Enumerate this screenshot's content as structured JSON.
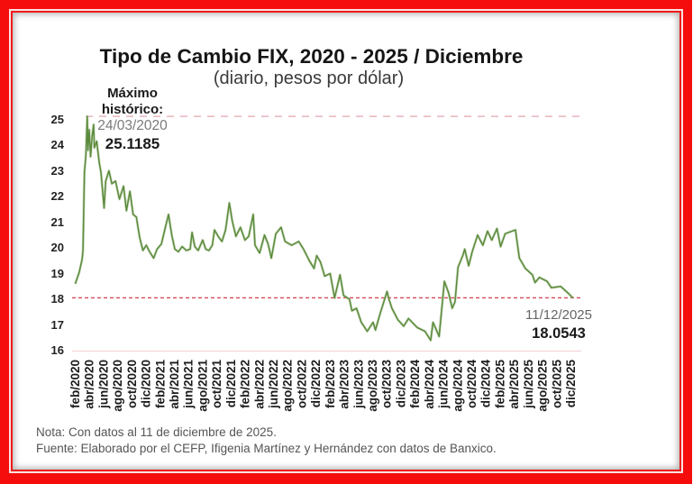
{
  "chart_data": {
    "type": "line",
    "title": "Tipo de Cambio FIX, 2020 - 2025 / Diciembre",
    "subtitle": "(diario, pesos por dólar)",
    "xlabel": "",
    "ylabel": "",
    "ylim": [
      16,
      25
    ],
    "grid": false,
    "legend": "none",
    "yticks": [
      "25",
      "24",
      "23",
      "22",
      "21",
      "20",
      "19",
      "18",
      "17",
      "16"
    ],
    "xticks": [
      "feb/2020",
      "abr/2020",
      "jun/2020",
      "ago/2020",
      "oct/2020",
      "dic/2020",
      "feb/2021",
      "abr/2021",
      "jun/2021",
      "ago/2021",
      "oct/2021",
      "dic/2021",
      "feb/2022",
      "abr/2022",
      "jun/2022",
      "ago/2022",
      "oct/2022",
      "dic/2022",
      "feb/2023",
      "abr/2023",
      "jun/2023",
      "ago/2023",
      "oct/2023",
      "dic/2023",
      "feb/2024",
      "abr/2024",
      "jun/2024",
      "ago/2024",
      "oct/2024",
      "dic/2024",
      "feb/2025",
      "abr/2025",
      "jun/2025",
      "ago/2025",
      "oct/2025",
      "dic/2025"
    ],
    "series": [
      {
        "name": "Tipo de Cambio FIX",
        "color": "#5b8a3c",
        "points": [
          [
            "2020-02-03",
            18.6
          ],
          [
            "2020-02-20",
            19.05
          ],
          [
            "2020-03-02",
            19.55
          ],
          [
            "2020-03-06",
            19.9
          ],
          [
            "2020-03-12",
            22.95
          ],
          [
            "2020-03-18",
            23.6
          ],
          [
            "2020-03-24",
            25.1185
          ],
          [
            "2020-03-27",
            23.8
          ],
          [
            "2020-04-02",
            24.6
          ],
          [
            "2020-04-08",
            23.55
          ],
          [
            "2020-04-14",
            24.3
          ],
          [
            "2020-04-21",
            24.8
          ],
          [
            "2020-04-24",
            23.9
          ],
          [
            "2020-05-04",
            24.15
          ],
          [
            "2020-05-15",
            23.3
          ],
          [
            "2020-05-22",
            22.95
          ],
          [
            "2020-06-05",
            21.55
          ],
          [
            "2020-06-12",
            22.6
          ],
          [
            "2020-06-26",
            23.0
          ],
          [
            "2020-07-08",
            22.5
          ],
          [
            "2020-07-24",
            22.6
          ],
          [
            "2020-08-10",
            21.9
          ],
          [
            "2020-08-28",
            22.4
          ],
          [
            "2020-09-10",
            21.45
          ],
          [
            "2020-09-25",
            22.2
          ],
          [
            "2020-10-08",
            21.3
          ],
          [
            "2020-10-22",
            21.2
          ],
          [
            "2020-11-06",
            20.4
          ],
          [
            "2020-11-20",
            19.9
          ],
          [
            "2020-12-04",
            20.1
          ],
          [
            "2020-12-18",
            19.85
          ],
          [
            "2021-01-05",
            19.6
          ],
          [
            "2021-01-20",
            19.95
          ],
          [
            "2021-02-08",
            20.15
          ],
          [
            "2021-02-25",
            20.8
          ],
          [
            "2021-03-08",
            21.3
          ],
          [
            "2021-03-22",
            20.5
          ],
          [
            "2021-04-05",
            19.95
          ],
          [
            "2021-04-20",
            19.85
          ],
          [
            "2021-05-06",
            20.05
          ],
          [
            "2021-05-24",
            19.9
          ],
          [
            "2021-06-10",
            19.95
          ],
          [
            "2021-06-18",
            20.6
          ],
          [
            "2021-06-30",
            20.05
          ],
          [
            "2021-07-14",
            19.9
          ],
          [
            "2021-08-03",
            20.3
          ],
          [
            "2021-08-16",
            19.95
          ],
          [
            "2021-08-30",
            19.9
          ],
          [
            "2021-09-14",
            20.1
          ],
          [
            "2021-09-23",
            20.7
          ],
          [
            "2021-10-12",
            20.4
          ],
          [
            "2021-10-25",
            20.25
          ],
          [
            "2021-11-10",
            20.7
          ],
          [
            "2021-11-26",
            21.75
          ],
          [
            "2021-12-08",
            21.05
          ],
          [
            "2021-12-24",
            20.45
          ],
          [
            "2022-01-13",
            20.8
          ],
          [
            "2022-02-02",
            20.3
          ],
          [
            "2022-02-18",
            20.45
          ],
          [
            "2022-03-07",
            21.3
          ],
          [
            "2022-03-15",
            20.1
          ],
          [
            "2022-04-04",
            19.8
          ],
          [
            "2022-04-25",
            20.5
          ],
          [
            "2022-05-10",
            20.15
          ],
          [
            "2022-05-24",
            19.6
          ],
          [
            "2022-06-13",
            20.55
          ],
          [
            "2022-07-05",
            20.8
          ],
          [
            "2022-07-22",
            20.25
          ],
          [
            "2022-08-20",
            20.1
          ],
          [
            "2022-09-20",
            20.25
          ],
          [
            "2022-10-10",
            19.95
          ],
          [
            "2022-11-05",
            19.5
          ],
          [
            "2022-11-25",
            19.2
          ],
          [
            "2022-12-06",
            19.7
          ],
          [
            "2022-12-22",
            19.45
          ],
          [
            "2023-01-10",
            18.9
          ],
          [
            "2023-02-03",
            19.0
          ],
          [
            "2023-02-22",
            18.05
          ],
          [
            "2023-03-15",
            18.95
          ],
          [
            "2023-03-30",
            18.15
          ],
          [
            "2023-04-25",
            18.0
          ],
          [
            "2023-05-05",
            17.55
          ],
          [
            "2023-05-25",
            17.65
          ],
          [
            "2023-06-15",
            17.1
          ],
          [
            "2023-07-10",
            16.75
          ],
          [
            "2023-08-05",
            17.1
          ],
          [
            "2023-08-15",
            16.8
          ],
          [
            "2023-09-05",
            17.45
          ],
          [
            "2023-10-04",
            18.3
          ],
          [
            "2023-10-12",
            18.0
          ],
          [
            "2023-10-25",
            17.65
          ],
          [
            "2023-11-20",
            17.2
          ],
          [
            "2023-12-15",
            16.95
          ],
          [
            "2024-01-05",
            17.25
          ],
          [
            "2024-02-12",
            16.9
          ],
          [
            "2024-03-15",
            16.75
          ],
          [
            "2024-04-09",
            16.4
          ],
          [
            "2024-04-19",
            17.1
          ],
          [
            "2024-05-15",
            16.55
          ],
          [
            "2024-06-07",
            18.7
          ],
          [
            "2024-06-25",
            18.25
          ],
          [
            "2024-07-10",
            17.65
          ],
          [
            "2024-07-22",
            17.9
          ],
          [
            "2024-08-05",
            19.25
          ],
          [
            "2024-08-25",
            19.7
          ],
          [
            "2024-09-03",
            19.95
          ],
          [
            "2024-09-20",
            19.3
          ],
          [
            "2024-10-05",
            19.85
          ],
          [
            "2024-10-28",
            20.5
          ],
          [
            "2024-11-20",
            20.1
          ],
          [
            "2024-12-10",
            20.65
          ],
          [
            "2024-12-28",
            20.3
          ],
          [
            "2025-01-20",
            20.75
          ],
          [
            "2025-02-05",
            20.05
          ],
          [
            "2025-02-25",
            20.55
          ],
          [
            "2025-04-08",
            20.7
          ],
          [
            "2025-04-25",
            19.6
          ],
          [
            "2025-05-20",
            19.2
          ],
          [
            "2025-06-20",
            18.95
          ],
          [
            "2025-07-01",
            18.65
          ],
          [
            "2025-07-20",
            18.85
          ],
          [
            "2025-08-22",
            18.7
          ],
          [
            "2025-09-10",
            18.45
          ],
          [
            "2025-10-20",
            18.5
          ],
          [
            "2025-11-20",
            18.25
          ],
          [
            "2025-12-11",
            18.0543
          ]
        ]
      }
    ],
    "reference_lines": [
      {
        "name": "maximo-historico",
        "value": 25.1185,
        "style": "dashed",
        "color": "#e6b4bc"
      },
      {
        "name": "ultimo-dato",
        "value": 18.0543,
        "style": "dashed",
        "color": "#d34a55"
      }
    ],
    "annotations": [
      {
        "label": "Máximo histórico:",
        "date": "24/03/2020",
        "value": 25.1185
      },
      {
        "label": "",
        "date": "11/12/2025",
        "value": 18.0543
      }
    ]
  },
  "annotations": {
    "max": {
      "line1": "Máximo",
      "line2": "histórico:",
      "date": "24/03/2020",
      "value": "25.1185"
    },
    "last": {
      "date": "11/12/2025",
      "value": "18.0543"
    }
  },
  "footer": {
    "note": "Nota: Con datos al 11 de diciembre de 2025.",
    "source": "Fuente: Elaborado por el CEFP, Ifigenia Martínez y Hernández con datos de Banxico."
  },
  "colors": {
    "frame": "#f50d0d",
    "line": "#5b8a3c",
    "axis": "#f2d3d7"
  }
}
